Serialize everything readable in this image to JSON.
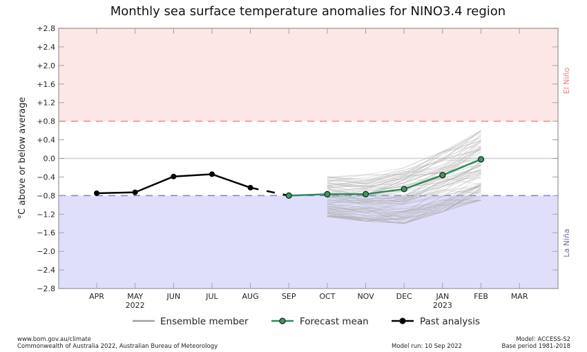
{
  "chart_data": {
    "type": "line",
    "title": "Monthly sea surface temperature anomalies for NINO3.4 region",
    "xlabel": "",
    "ylabel": "°C above or below average",
    "ylim": [
      -2.8,
      2.8
    ],
    "yticks": [
      2.8,
      2.4,
      2.0,
      1.6,
      1.2,
      0.8,
      0.4,
      0.0,
      -0.4,
      -0.8,
      -1.2,
      -1.6,
      -2.0,
      -2.4,
      -2.8
    ],
    "ytick_labels": [
      "+2.8",
      "+2.4",
      "+2.0",
      "+1.6",
      "+1.2",
      "+0.8",
      "+0.4",
      "0.0",
      "−0.4",
      "−0.8",
      "−1.2",
      "−1.6",
      "−2.0",
      "−2.4",
      "−2.8"
    ],
    "categories": [
      "APR",
      "MAY",
      "JUN",
      "JUL",
      "AUG",
      "SEP",
      "OCT",
      "NOV",
      "DEC",
      "JAN",
      "FEB",
      "MAR"
    ],
    "year_labels": [
      {
        "month": "MAY",
        "label": "2022"
      },
      {
        "month": "JAN",
        "label": "2023"
      }
    ],
    "thresholds": [
      {
        "name": "El Niño",
        "value": 0.8,
        "color": "#e88a8a",
        "fill": "#fde6e6"
      },
      {
        "name": "La Niña",
        "value": -0.8,
        "color": "#8080c0",
        "fill": "#dfdffc"
      }
    ],
    "regime_labels": {
      "el_nino": {
        "text": "El Niño",
        "color": "#e87a7a"
      },
      "la_nina": {
        "text": "La Niña",
        "color": "#6a6aaa"
      }
    },
    "series": [
      {
        "name": "Past analysis",
        "color": "#000000",
        "months": [
          "APR",
          "MAY",
          "JUN",
          "JUL",
          "AUG"
        ],
        "values": [
          -0.75,
          -0.73,
          -0.39,
          -0.34,
          -0.63
        ]
      },
      {
        "name": "Forecast mean",
        "color": "#2e8b57",
        "marker_fill": "#3a9a60",
        "months": [
          "SEP",
          "OCT",
          "NOV",
          "DEC",
          "JAN",
          "FEB"
        ],
        "values": [
          -0.8,
          -0.77,
          -0.77,
          -0.66,
          -0.36,
          -0.02
        ]
      },
      {
        "name": "Ensemble member",
        "color": "#b0b0b0",
        "months": [
          "OCT",
          "NOV",
          "DEC",
          "JAN",
          "FEB"
        ],
        "spread_min": [
          -1.25,
          -1.35,
          -1.4,
          -1.15,
          -0.9
        ],
        "spread_max": [
          -0.4,
          -0.35,
          -0.2,
          0.15,
          0.6
        ],
        "member_count": 99
      }
    ],
    "bridge": {
      "from": "AUG",
      "to": "SEP",
      "style": "dashed",
      "color": "#000000"
    },
    "legend": {
      "position": "bottom-center",
      "items": [
        {
          "label": "Ensemble member",
          "kind": "line",
          "color": "#a0a0a0"
        },
        {
          "label": "Forecast mean",
          "kind": "line-marker",
          "color": "#2e8b57"
        },
        {
          "label": "Past analysis",
          "kind": "line-marker",
          "color": "#000000"
        }
      ]
    },
    "grid": false
  },
  "footer": {
    "left_line1": "www.bom.gov.au/climate",
    "left_line2": "Commonwealth of Australia 2022, Australian Bureau of Meteorology",
    "model_run": "Model run: 10 Sep 2022",
    "model": "Model: ACCESS-S2",
    "base_period": "Base period 1981-2018"
  }
}
